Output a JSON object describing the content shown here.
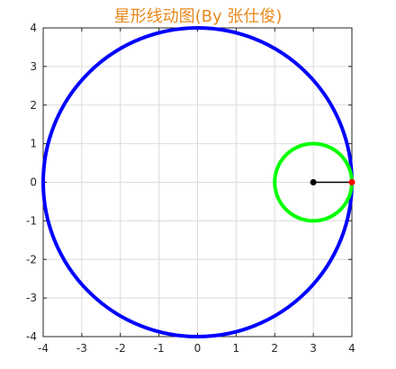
{
  "chart_data": {
    "type": "line",
    "title": "星形线动图(By 张仕俊)",
    "title_color": "#e8881c",
    "xlabel": "",
    "ylabel": "",
    "xlim": [
      -4,
      4
    ],
    "ylim": [
      -4,
      4
    ],
    "xticks": [
      -4,
      -3,
      -2,
      -1,
      0,
      1,
      2,
      3,
      4
    ],
    "yticks": [
      -4,
      -3,
      -2,
      -1,
      0,
      1,
      2,
      3,
      4
    ],
    "xtick_labels": [
      "-4",
      "-3",
      "-2",
      "-1",
      "0",
      "1",
      "2",
      "3",
      "4"
    ],
    "ytick_labels": [
      "-4",
      "-3",
      "-2",
      "-1",
      "0",
      "1",
      "2",
      "3",
      "4"
    ],
    "grid": true,
    "axis_box": true,
    "series": [
      {
        "shape": "circle",
        "center": [
          0,
          0
        ],
        "radius": 4,
        "color": "#0000ff"
      },
      {
        "shape": "circle",
        "center": [
          3,
          0
        ],
        "radius": 1,
        "color": "#00ff00"
      },
      {
        "shape": "segment",
        "x": [
          3,
          4
        ],
        "y": [
          0,
          0
        ],
        "color": "#000000"
      },
      {
        "shape": "point",
        "x": 3,
        "y": 0,
        "color": "#000000"
      },
      {
        "shape": "point",
        "x": 4,
        "y": 0,
        "color": "#ff0000"
      }
    ]
  }
}
